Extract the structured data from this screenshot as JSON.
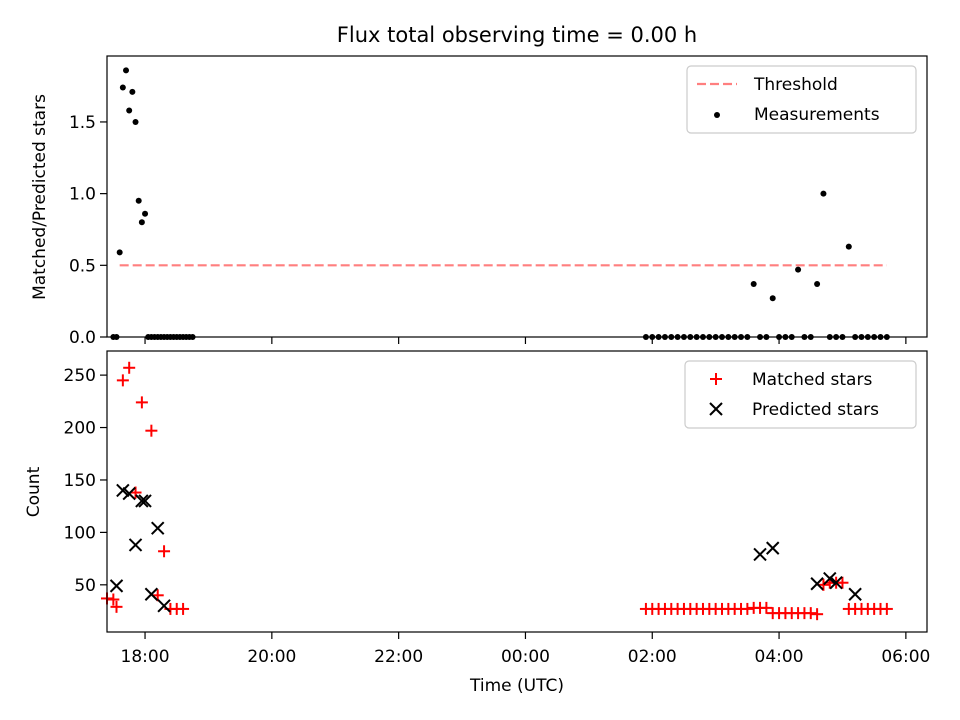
{
  "title": "Flux total observing time = 0.00 h",
  "colors": {
    "threshold": "#ff7f7f",
    "measurements": "#000000",
    "matched": "#ff0000",
    "predicted": "#000000"
  },
  "chart_data": [
    {
      "type": "scatter",
      "title": "Flux total observing time = 0.00 h",
      "ylabel": "Matched/Predicted stars",
      "xlabel": "",
      "x_unit": "hours since 00:00 UTC of first day (ticks labeled HH:MM)",
      "xlim": [
        "17:24",
        "06:20"
      ],
      "ylim": [
        0,
        1.96
      ],
      "y_ticks": [
        0.0,
        0.5,
        1.0,
        1.5
      ],
      "y_tick_labels": [
        "0.0",
        "0.5",
        "1.0",
        "1.5"
      ],
      "x_ticks": [
        "18:00",
        "20:00",
        "22:00",
        "00:00",
        "02:00",
        "04:00",
        "06:00"
      ],
      "legend_position": "upper right",
      "grid": false,
      "series": [
        {
          "name": "Threshold",
          "style": "dashed-line",
          "x": [
            "17:36",
            "05:42"
          ],
          "y": [
            0.5,
            0.5
          ]
        },
        {
          "name": "Measurements",
          "style": "dot",
          "x": [
            "17:30",
            "17:33",
            "17:36",
            "17:39",
            "17:42",
            "17:45",
            "17:48",
            "17:51",
            "17:54",
            "17:57",
            "18:00",
            "18:03",
            "18:06",
            "18:09",
            "18:12",
            "18:15",
            "18:18",
            "18:21",
            "18:24",
            "18:27",
            "18:30",
            "18:33",
            "18:36",
            "18:39",
            "18:42",
            "18:45",
            "01:54",
            "02:00",
            "02:06",
            "02:12",
            "02:18",
            "02:24",
            "02:30",
            "02:36",
            "02:42",
            "02:48",
            "02:54",
            "03:00",
            "03:06",
            "03:12",
            "03:18",
            "03:24",
            "03:30",
            "03:36",
            "03:42",
            "03:48",
            "03:54",
            "04:00",
            "04:06",
            "04:12",
            "04:18",
            "04:24",
            "04:30",
            "04:36",
            "04:42",
            "04:48",
            "04:54",
            "05:00",
            "05:06",
            "05:12",
            "05:18",
            "05:24",
            "05:30",
            "05:36",
            "05:42"
          ],
          "y": [
            0,
            0,
            0.59,
            1.74,
            1.86,
            1.58,
            1.71,
            1.5,
            0.95,
            0.8,
            0.86,
            0,
            0,
            0,
            0,
            0,
            0,
            0,
            0,
            0,
            0,
            0,
            0,
            0,
            0,
            0,
            0,
            0,
            0,
            0,
            0,
            0,
            0,
            0,
            0,
            0,
            0,
            0,
            0,
            0,
            0,
            0,
            0,
            0.37,
            0,
            0,
            0.27,
            0,
            0,
            0,
            0.47,
            0,
            0,
            0.37,
            1.0,
            0,
            0,
            0,
            0.63,
            0,
            0,
            0,
            0,
            0,
            0
          ]
        }
      ]
    },
    {
      "type": "scatter",
      "title": "",
      "ylabel": "Count",
      "xlabel": "Time (UTC)",
      "ylim": [
        5,
        273
      ],
      "y_ticks": [
        50,
        100,
        150,
        200,
        250
      ],
      "y_tick_labels": [
        "50",
        "100",
        "150",
        "200",
        "250"
      ],
      "x_ticks": [
        "18:00",
        "20:00",
        "22:00",
        "00:00",
        "02:00",
        "04:00",
        "06:00"
      ],
      "x_tick_labels": [
        "18:00",
        "20:00",
        "22:00",
        "00:00",
        "02:00",
        "04:00",
        "06:00"
      ],
      "legend_position": "upper right",
      "grid": false,
      "series": [
        {
          "name": "Matched stars",
          "style": "plus",
          "x": [
            "17:24",
            "17:30",
            "17:33",
            "17:39",
            "17:45",
            "17:51",
            "17:57",
            "18:06",
            "18:12",
            "18:18",
            "18:24",
            "18:30",
            "18:36",
            "01:54",
            "02:00",
            "02:06",
            "02:12",
            "02:18",
            "02:24",
            "02:30",
            "02:36",
            "02:42",
            "02:48",
            "02:54",
            "03:00",
            "03:06",
            "03:12",
            "03:18",
            "03:24",
            "03:30",
            "03:36",
            "03:42",
            "03:48",
            "03:54",
            "04:00",
            "04:06",
            "04:12",
            "04:18",
            "04:24",
            "04:30",
            "04:36",
            "04:42",
            "04:48",
            "04:54",
            "05:00",
            "05:06",
            "05:12",
            "05:18",
            "05:24",
            "05:30",
            "05:36",
            "05:42"
          ],
          "y": [
            37,
            36,
            29,
            245,
            257,
            138,
            224,
            197,
            40,
            82,
            27,
            27,
            27,
            27,
            27,
            27,
            27,
            27,
            27,
            27,
            27,
            27,
            27,
            27,
            27,
            27,
            27,
            27,
            27,
            27,
            28,
            28,
            28,
            23,
            23,
            23,
            23,
            23,
            23,
            23,
            22,
            50,
            52,
            52,
            52,
            27,
            27,
            27,
            27,
            27,
            27,
            27
          ]
        },
        {
          "name": "Predicted stars",
          "style": "x",
          "x": [
            "17:33",
            "17:39",
            "17:45",
            "17:51",
            "17:57",
            "18:00",
            "18:06",
            "18:12",
            "18:18",
            "03:42",
            "03:54",
            "04:36",
            "04:48",
            "04:54",
            "05:12"
          ],
          "y": [
            49,
            140,
            137,
            88,
            130,
            130,
            41,
            104,
            30,
            79,
            85,
            51,
            56,
            52,
            41
          ]
        }
      ]
    }
  ]
}
